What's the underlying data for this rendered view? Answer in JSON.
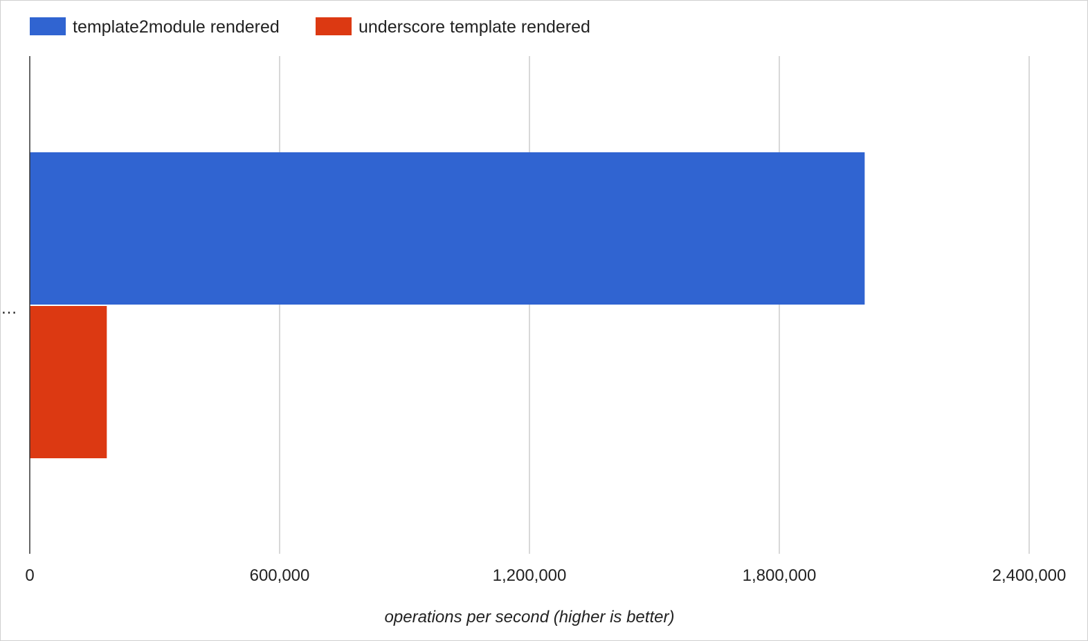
{
  "chart_data": {
    "type": "bar",
    "orientation": "horizontal",
    "categories": [
      "…"
    ],
    "series": [
      {
        "name": "template2module rendered",
        "color": "#3064d1",
        "values": [
          2005000
        ]
      },
      {
        "name": "underscore template rendered",
        "color": "#dc3912",
        "values": [
          185000
        ]
      }
    ],
    "xlabel": "operations per second (higher is better)",
    "ylabel": "",
    "xlim": [
      0,
      2400000
    ],
    "xticks": [
      0,
      600000,
      1200000,
      1800000,
      2400000
    ],
    "xtick_labels": [
      "0",
      "600,000",
      "1,200,000",
      "1,800,000",
      "2,400,000"
    ],
    "grid": true,
    "legend_position": "top-left",
    "gridline_color": "#cccccc",
    "axis_line_color": "#333333"
  }
}
